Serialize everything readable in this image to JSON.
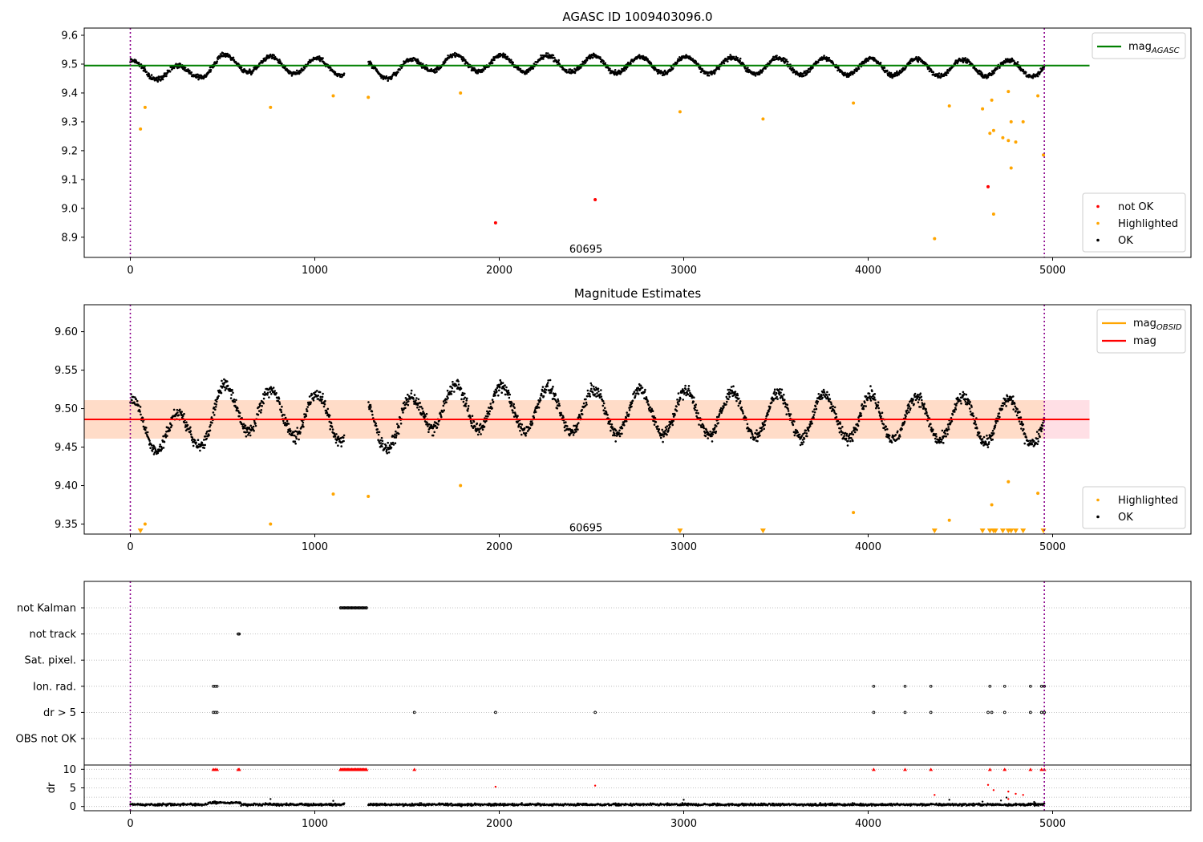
{
  "chart_data": [
    {
      "type": "scatter",
      "title": "AGASC ID 1009403096.0",
      "xlim": [
        -250,
        5750
      ],
      "ylim": [
        8.83,
        9.625
      ],
      "xticks": [
        0,
        1000,
        2000,
        3000,
        4000,
        5000
      ],
      "yticks": [
        8.9,
        9.0,
        9.1,
        9.2,
        9.3,
        9.4,
        9.5,
        9.6
      ],
      "ytick_decimals": 1,
      "annotation": {
        "text": "60695",
        "x": 2470,
        "y": 8.86
      },
      "vlines": [
        0,
        4955
      ],
      "mag_agasc": {
        "value": 9.495,
        "x": [
          -250,
          5200
        ],
        "color": "#008000"
      },
      "band": null,
      "mag_line": null,
      "legend_top": {
        "position": "top-right",
        "entries": [
          {
            "label": "mag",
            "sub": "AGASC",
            "color": "#008000"
          }
        ]
      },
      "legend_bottom": {
        "position": "lower-right",
        "entries": [
          {
            "label": "not OK",
            "color": "#ff0000"
          },
          {
            "label": "Highlighted",
            "color": "#ffa500"
          },
          {
            "label": "OK",
            "color": "#000000"
          }
        ]
      },
      "series": [
        {
          "name": "not OK",
          "color": "#ff0000",
          "points": [
            [
              1980,
              8.95
            ],
            [
              2520,
              9.03
            ],
            [
              4650,
              9.075
            ]
          ]
        },
        {
          "name": "Highlighted",
          "color": "#ffa500",
          "points": [
            [
              55,
              9.275
            ],
            [
              80,
              9.35
            ],
            [
              760,
              9.35
            ],
            [
              1100,
              9.39
            ],
            [
              1290,
              9.385
            ],
            [
              1790,
              9.4
            ],
            [
              2980,
              9.335
            ],
            [
              3430,
              9.31
            ],
            [
              3920,
              9.365
            ],
            [
              4360,
              8.895
            ],
            [
              4440,
              9.355
            ],
            [
              4620,
              9.345
            ],
            [
              4660,
              9.26
            ],
            [
              4670,
              9.375
            ],
            [
              4680,
              9.27
            ],
            [
              4680,
              8.98
            ],
            [
              4730,
              9.245
            ],
            [
              4760,
              9.405
            ],
            [
              4760,
              9.235
            ],
            [
              4775,
              9.3
            ],
            [
              4775,
              9.14
            ],
            [
              4800,
              9.23
            ],
            [
              4840,
              9.3
            ],
            [
              4920,
              9.39
            ],
            [
              4950,
              9.185
            ]
          ]
        }
      ],
      "ok_signal": {
        "x_range": [
          0,
          4955
        ],
        "gap": [
          1160,
          1290
        ],
        "mean": 9.485,
        "amplitude": 0.032,
        "trend": [
          [
            0,
            0.0
          ],
          [
            300,
            -0.02
          ],
          [
            500,
            0.02
          ],
          [
            1300,
            0.0
          ],
          [
            1450,
            -0.01
          ],
          [
            1600,
            0.02
          ],
          [
            4955,
            0.0
          ]
        ],
        "period": 250,
        "phase": 450,
        "noise": 0.008
      }
    },
    {
      "type": "scatter",
      "title": "Magnitude Estimates",
      "xlim": [
        -250,
        5750
      ],
      "ylim": [
        9.337,
        9.635
      ],
      "xticks": [
        0,
        1000,
        2000,
        3000,
        4000,
        5000
      ],
      "yticks": [
        9.35,
        9.4,
        9.45,
        9.5,
        9.55,
        9.6
      ],
      "ytick_decimals": 2,
      "annotation": {
        "text": "60695",
        "x": 2470,
        "y": 9.346
      },
      "vlines": [
        0,
        4955
      ],
      "mag_agasc": null,
      "band": {
        "x": [
          -250,
          5200
        ],
        "y": [
          9.461,
          9.511
        ],
        "colors": [
          "#ffd9e0",
          "#ffdcc4"
        ],
        "split_x": 4955
      },
      "mag_line": {
        "value": 9.486,
        "x": [
          -250,
          5200
        ],
        "color": "#ff0000"
      },
      "legend_top": {
        "position": "top-right",
        "entries": [
          {
            "label": "mag",
            "sub": "OBSID",
            "color": "#ffa500"
          },
          {
            "label": "mag",
            "sub": "",
            "color": "#ff0000"
          }
        ]
      },
      "legend_bottom": {
        "position": "lower-right",
        "entries": [
          {
            "label": "Highlighted",
            "color": "#ffa500"
          },
          {
            "label": "OK",
            "color": "#000000"
          }
        ]
      },
      "series": [
        {
          "name": "Highlighted",
          "color": "#ffa500",
          "points": [
            [
              80,
              9.35
            ],
            [
              760,
              9.35
            ],
            [
              1100,
              9.389
            ],
            [
              1290,
              9.386
            ],
            [
              1790,
              9.4
            ],
            [
              3920,
              9.365
            ],
            [
              4440,
              9.355
            ],
            [
              4670,
              9.375
            ],
            [
              4760,
              9.405
            ],
            [
              4920,
              9.39
            ]
          ]
        },
        {
          "name": "Highlighted (off scale)",
          "color": "#ffa500",
          "marker": "triangle-down",
          "points": [
            [
              55,
              9.341
            ],
            [
              2980,
              9.341
            ],
            [
              3430,
              9.341
            ],
            [
              4360,
              9.341
            ],
            [
              4620,
              9.341
            ],
            [
              4660,
              9.341
            ],
            [
              4680,
              9.341
            ],
            [
              4690,
              9.341
            ],
            [
              4730,
              9.341
            ],
            [
              4760,
              9.341
            ],
            [
              4775,
              9.341
            ],
            [
              4800,
              9.341
            ],
            [
              4840,
              9.341
            ],
            [
              4950,
              9.341
            ]
          ]
        }
      ],
      "ok_signal": {
        "x_range": [
          0,
          4955
        ],
        "gap": [
          1160,
          1290
        ],
        "mean": 9.483,
        "amplitude": 0.032,
        "trend": [
          [
            0,
            0.0
          ],
          [
            300,
            -0.02
          ],
          [
            500,
            0.02
          ],
          [
            1300,
            0.0
          ],
          [
            1450,
            -0.01
          ],
          [
            1600,
            0.02
          ],
          [
            4955,
            0.0
          ]
        ],
        "period": 250,
        "phase": 450,
        "noise": 0.008
      }
    },
    {
      "type": "scatter",
      "title": "",
      "xlim": [
        -250,
        5750
      ],
      "xticks": [
        0,
        1000,
        2000,
        3000,
        4000,
        5000
      ],
      "vlines": [
        0,
        4955
      ],
      "flag_rows": [
        {
          "label": "not Kalman",
          "x": [
            1140,
            1160,
            1180,
            1200,
            1220,
            1240,
            1260,
            1280
          ]
        },
        {
          "label": "not track",
          "x": [
            585,
            590
          ]
        },
        {
          "label": "Sat. pixel.",
          "x": []
        },
        {
          "label": "Ion. rad.",
          "x": [
            450,
            460,
            470,
            4030,
            4200,
            4340,
            4660,
            4740,
            4880,
            4940,
            4955
          ]
        },
        {
          "label": "dr > 5",
          "x": [
            450,
            460,
            470,
            1540,
            1980,
            2520,
            4030,
            4200,
            4340,
            4650,
            4670,
            4740,
            4880,
            4940,
            4955
          ]
        },
        {
          "label": "OBS not OK",
          "x": []
        }
      ],
      "dr": {
        "ylabel": "dr",
        "ylim": [
          -0.5,
          10.5
        ],
        "yticks": [
          0,
          5,
          10
        ],
        "clip_value": 10,
        "clipped_x": [
          450,
          460,
          470,
          585,
          590,
          1140,
          1160,
          1180,
          1200,
          1220,
          1240,
          1260,
          1280,
          1540,
          4030,
          4200,
          4340,
          4660,
          4740,
          4880,
          4940,
          4955
        ],
        "red_points": [
          [
            1980,
            5.3
          ],
          [
            2520,
            5.6
          ],
          [
            4360,
            3.1
          ],
          [
            4650,
            5.8
          ],
          [
            4680,
            4.4
          ],
          [
            4760,
            2.0
          ],
          [
            4800,
            3.4
          ],
          [
            4840,
            3.1
          ],
          [
            4760,
            4.0
          ]
        ],
        "black_scatter": [
          [
            760,
            2.0
          ],
          [
            1100,
            1.5
          ],
          [
            3000,
            1.8
          ],
          [
            4440,
            1.8
          ],
          [
            4620,
            1.3
          ],
          [
            4720,
            1.6
          ],
          [
            4750,
            2.4
          ],
          [
            4900,
            1.2
          ]
        ],
        "baseline": {
          "x_range": [
            0,
            4955
          ],
          "gap": [
            1160,
            1290
          ],
          "level": 0.5,
          "noise": 0.3
        }
      }
    }
  ]
}
